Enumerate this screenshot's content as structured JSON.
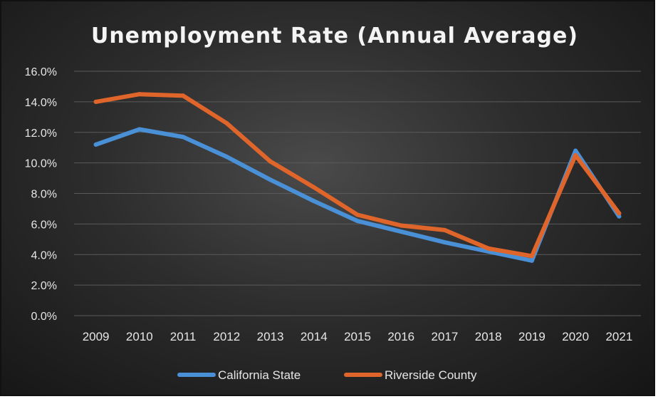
{
  "chart_data": {
    "type": "line",
    "title": "Unemployment Rate (Annual Average)",
    "x": [
      "2009",
      "2010",
      "2011",
      "2012",
      "2013",
      "2014",
      "2015",
      "2016",
      "2017",
      "2018",
      "2019",
      "2020",
      "2021"
    ],
    "ylim": [
      0,
      16
    ],
    "yticks": [
      "0.0%",
      "2.0%",
      "4.0%",
      "6.0%",
      "8.0%",
      "10.0%",
      "12.0%",
      "14.0%",
      "16.0%"
    ],
    "grid": true,
    "legend_position": "bottom",
    "series": [
      {
        "name": "California State",
        "color": "#4a90d6",
        "values": [
          11.2,
          12.2,
          11.7,
          10.4,
          8.9,
          7.5,
          6.2,
          5.5,
          4.8,
          4.2,
          3.6,
          10.8,
          6.5
        ]
      },
      {
        "name": "Riverside County",
        "color": "#e0652a",
        "values": [
          14.0,
          14.5,
          14.4,
          12.6,
          10.1,
          8.4,
          6.6,
          5.9,
          5.6,
          4.4,
          3.9,
          10.5,
          6.7
        ]
      }
    ]
  }
}
